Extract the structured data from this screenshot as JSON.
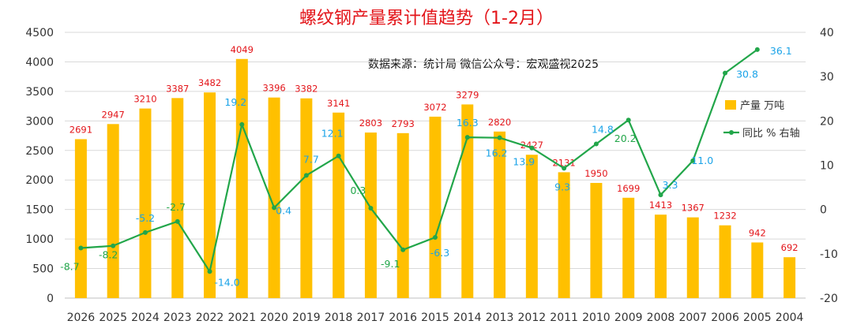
{
  "chart_data": {
    "type": "bar",
    "title": "螺纹钢产量累计值趋势（1-2月）",
    "subtitle": "数据来源：统计局  微信公众号：宏观盛视2025",
    "categories": [
      "2026",
      "2025",
      "2024",
      "2023",
      "2022",
      "2021",
      "2020",
      "2019",
      "2018",
      "2017",
      "2016",
      "2015",
      "2014",
      "2013",
      "2012",
      "2011",
      "2010",
      "2009",
      "2008",
      "2007",
      "2006",
      "2005",
      "2004"
    ],
    "series": [
      {
        "name": "产量 万吨",
        "type": "bar",
        "axis": "left",
        "color": "#ffc000",
        "values": [
          2691,
          2947,
          3210,
          3387,
          3482,
          4049,
          3396,
          3382,
          3141,
          2803,
          2793,
          3072,
          3279,
          2820,
          2427,
          2131,
          1950,
          1699,
          1413,
          1367,
          1232,
          942,
          692
        ],
        "value_labels": [
          "2691",
          "2947",
          "3210",
          "3387",
          "3482",
          "4049",
          "3396",
          "3382",
          "3141",
          "2803",
          "2793",
          "3072",
          "3279",
          "2820",
          "2427",
          "2131",
          "1950",
          "1699",
          "1413",
          "1367",
          "1232",
          "942",
          "692"
        ]
      },
      {
        "name": "同比 % 右轴",
        "type": "line",
        "axis": "right",
        "color": "#22a64a",
        "values": [
          -8.7,
          -8.2,
          -5.2,
          -2.7,
          -14.0,
          19.2,
          0.4,
          7.7,
          12.1,
          0.3,
          -9.1,
          -6.3,
          16.3,
          16.2,
          13.9,
          9.3,
          14.8,
          20.2,
          3.3,
          11.0,
          30.8,
          36.1,
          null
        ],
        "value_labels": [
          "-8.7",
          "-8.2",
          "-5.2",
          "-2.7",
          "-14.0",
          "19.2",
          "0.4",
          "7.7",
          "12.1",
          "0.3",
          "-9.1",
          "-6.3",
          "16.3",
          "16.2",
          "13.9",
          "9.3",
          "14.8",
          "20.2",
          "3.3",
          "11.0",
          "30.8",
          "36.1",
          ""
        ]
      }
    ],
    "y_left": {
      "ylim": [
        0,
        4500
      ],
      "ticks": [
        "0",
        "500",
        "1000",
        "1500",
        "2000",
        "2500",
        "3000",
        "3500",
        "4000",
        "4500"
      ]
    },
    "y_right": {
      "ylim": [
        -20,
        40
      ],
      "ticks": [
        "-20",
        "-10",
        "0",
        "10",
        "20",
        "30",
        "40"
      ]
    },
    "grid": true,
    "legend_position": "right",
    "colors": {
      "bar": "#ffc000",
      "line": "#22a64a",
      "title": "#e3151a",
      "label_red": "#e3151a",
      "label_blue": "#1aa3e8",
      "label_green": "#22a64a"
    }
  }
}
